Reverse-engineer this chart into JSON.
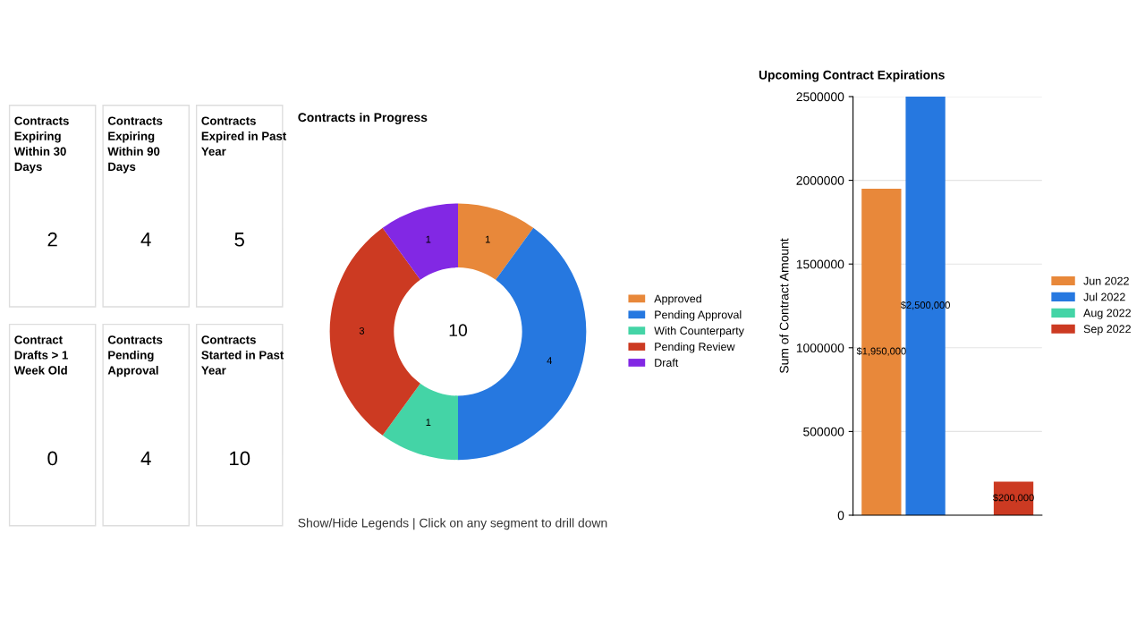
{
  "chart_data": [
    {
      "type": "other",
      "categories": [
        "Contracts\nExpiring\nWithin 30\nDays",
        "Contracts\nExpiring\nWithin 90\nDays",
        "Contracts\nExpired in Past\nYear",
        "Contract\nDrafts > 1\nWeek Old",
        "Contracts\nPending\nApproval",
        "Contracts\nStarted in Past\nYear"
      ],
      "values": [
        2,
        4,
        5,
        0,
        4,
        10
      ],
      "data_labels": true
    },
    {
      "type": "donut",
      "title": "Contracts in Progress",
      "categories": [
        "Approved",
        "Pending Approval",
        "With Counterparty",
        "Pending Review",
        "Draft"
      ],
      "values": [
        1,
        4,
        1,
        3,
        1
      ],
      "colors": [
        "#e8883a",
        "#2678e0",
        "#44d4a6",
        "#cc3a22",
        "#8228e4"
      ],
      "data_labels": true,
      "legend": "right",
      "annotations": [
        "10",
        "Show/Hide Legends | Click on any segment to drill down"
      ]
    },
    {
      "type": "bar",
      "title": "Upcoming Contract Expirations",
      "ylabel": "Sum of Contract Amount",
      "categories": [
        null
      ],
      "series": [
        {
          "name": "Jun 2022",
          "color": "#e8883a",
          "values": [
            1950000
          ],
          "value_labels": [
            "$1,950,000"
          ]
        },
        {
          "name": "Jul 2022",
          "color": "#2678e0",
          "values": [
            2500000
          ],
          "value_labels": [
            "$2,500,000"
          ]
        },
        {
          "name": "Aug 2022",
          "color": "#44d4a6",
          "values": [
            null
          ],
          "value_labels": [
            null
          ]
        },
        {
          "name": "Sep 2022",
          "color": "#cc3a22",
          "values": [
            200000
          ],
          "value_labels": [
            "$200,000"
          ]
        }
      ],
      "ylim": [
        0,
        2500000
      ],
      "yticks": [
        0,
        500000,
        1000000,
        1500000,
        2000000,
        2500000
      ],
      "grid": "y",
      "legend": "right"
    }
  ]
}
